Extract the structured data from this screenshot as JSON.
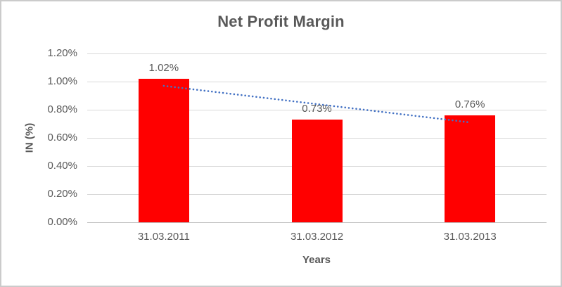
{
  "chart_data": {
    "type": "bar",
    "title": "Net Profit Margin",
    "xlabel": "Years",
    "ylabel": "IN (%)",
    "categories": [
      "31.03.2011",
      "31.03.2012",
      "31.03.2013"
    ],
    "values": [
      1.02,
      0.73,
      0.76
    ],
    "data_labels": [
      "1.02%",
      "0.73%",
      "0.76%"
    ],
    "ylim": [
      0,
      1.2
    ],
    "ytick_step": 0.2,
    "ytick_labels": [
      "0.00%",
      "0.20%",
      "0.40%",
      "0.60%",
      "0.80%",
      "1.00%",
      "1.20%"
    ],
    "grid": true,
    "legend": false,
    "bar_color": "#ff0000",
    "trendline": {
      "type": "linear",
      "style": "dotted",
      "color": "#4472c4",
      "start_value": 0.97,
      "end_value": 0.71
    }
  },
  "colors": {
    "title_text": "#595959",
    "axis_text": "#595959",
    "gridline": "#d9d9d9",
    "axis_line": "#bfbfbf",
    "frame_border": "#cbcbcb",
    "background": "#ffffff"
  }
}
